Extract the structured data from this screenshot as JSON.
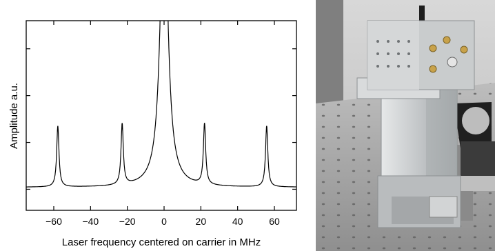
{
  "chart_data": {
    "type": "line",
    "title": "",
    "xlabel": "Laser frequency centered on carrier in MHz",
    "ylabel": "Amplitude a.u.",
    "xlim": [
      -75,
      72
    ],
    "ylim": [
      -0.45,
      3.6
    ],
    "xticks": [
      -60,
      -40,
      -20,
      0,
      20,
      40,
      60
    ],
    "xtick_labels": [
      "−60",
      "−40",
      "−20",
      "0",
      "20",
      "40",
      "60"
    ],
    "yticks": [
      0,
      1,
      2,
      3
    ],
    "ytick_labels": [
      "",
      "",
      "",
      ""
    ],
    "grid": false,
    "legend": "none",
    "color": "#000000",
    "series": [
      {
        "baseline": 0.04,
        "carrier": {
          "center": 0,
          "height_exceeds_plot": true
        },
        "peaks": [
          {
            "center": -57.8,
            "height": 1.3
          },
          {
            "center": -22.8,
            "height": 1.3
          },
          {
            "center": 22.0,
            "height": 1.3
          },
          {
            "center": 55.8,
            "height": 1.3
          }
        ]
      }
    ]
  },
  "photo": {
    "subject": "laser module mounted on optical breadboard",
    "colors": {
      "bg_top": "#dcdcdc",
      "table": "#a9a9a9",
      "metal": "#cfd2d4",
      "dark": "#2a2a2a"
    }
  }
}
